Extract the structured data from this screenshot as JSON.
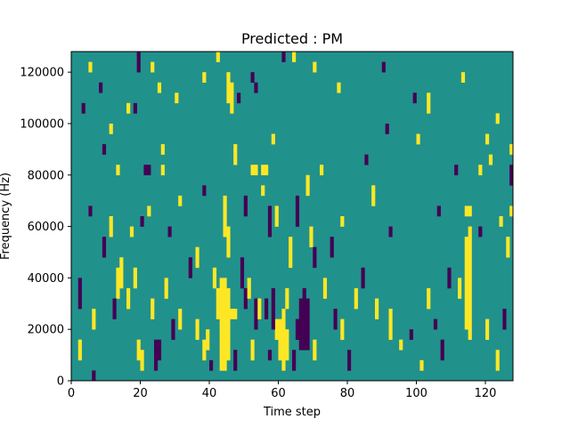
{
  "chart_data": {
    "type": "heatmap",
    "title": "Predicted : PM",
    "xlabel": "Time step",
    "ylabel": "Frequency (Hz)",
    "x_range": [
      0,
      128
    ],
    "y_range": [
      0,
      128000
    ],
    "x_ticks": [
      0,
      20,
      40,
      60,
      80,
      100,
      120
    ],
    "y_ticks": [
      0,
      20000,
      40000,
      60000,
      80000,
      100000,
      120000
    ],
    "x_tick_labels": [
      "0",
      "20",
      "40",
      "60",
      "80",
      "100",
      "120"
    ],
    "y_tick_labels": [
      "0",
      "20000",
      "40000",
      "60000",
      "80000",
      "100000",
      "120000"
    ],
    "levels": [
      -1,
      0,
      1
    ],
    "colormap": {
      "-1": "#440154",
      "0": "#21918c",
      "1": "#fde725"
    },
    "background_level": 0,
    "grid": false,
    "cell_size": {
      "time_steps": 1,
      "frequency_hz": 4000
    },
    "nonzero_cells": [
      {
        "t": 43,
        "f0": 4000,
        "f1": 40000,
        "v": 1
      },
      {
        "t": 44,
        "f0": 4000,
        "f1": 40000,
        "v": 1
      },
      {
        "t": 45,
        "f0": 8000,
        "f1": 36000,
        "v": 1
      },
      {
        "t": 42,
        "f0": 24000,
        "f1": 36000,
        "v": 1
      },
      {
        "t": 46,
        "f0": 24000,
        "f1": 28000,
        "v": 1
      },
      {
        "t": 47,
        "f0": 24000,
        "f1": 28000,
        "v": 1
      },
      {
        "t": 44,
        "f0": 56000,
        "f1": 72000,
        "v": 1
      },
      {
        "t": 45,
        "f0": 48000,
        "f1": 60000,
        "v": 1
      },
      {
        "t": 45,
        "f0": 108000,
        "f1": 120000,
        "v": 1
      },
      {
        "t": 46,
        "f0": 104000,
        "f1": 116000,
        "v": 1
      },
      {
        "t": 60,
        "f0": 8000,
        "f1": 24000,
        "v": 1
      },
      {
        "t": 61,
        "f0": 4000,
        "f1": 28000,
        "v": 1
      },
      {
        "t": 62,
        "f0": 8000,
        "f1": 20000,
        "v": 1
      },
      {
        "t": 59,
        "f0": 16000,
        "f1": 24000,
        "v": 1
      },
      {
        "t": 62,
        "f0": 28000,
        "f1": 36000,
        "v": 1
      },
      {
        "t": 66,
        "f0": 12000,
        "f1": 32000,
        "v": -1
      },
      {
        "t": 67,
        "f0": 12000,
        "f1": 36000,
        "v": -1
      },
      {
        "t": 68,
        "f0": 12000,
        "f1": 32000,
        "v": -1
      },
      {
        "t": 65,
        "f0": 16000,
        "f1": 24000,
        "v": -1
      },
      {
        "t": 58,
        "f0": 20000,
        "f1": 36000,
        "v": -1
      },
      {
        "t": 56,
        "f0": 24000,
        "f1": 32000,
        "v": -1
      },
      {
        "t": 114,
        "f0": 20000,
        "f1": 56000,
        "v": 1
      },
      {
        "t": 115,
        "f0": 16000,
        "f1": 60000,
        "v": 1
      },
      {
        "t": 115,
        "f0": 64000,
        "f1": 68000,
        "v": 1
      },
      {
        "t": 114,
        "f0": 64000,
        "f1": 68000,
        "v": 1
      },
      {
        "t": 19,
        "f0": 8000,
        "f1": 16000,
        "v": 1
      },
      {
        "t": 20,
        "f0": 4000,
        "f1": 12000,
        "v": 1
      },
      {
        "t": 24,
        "f0": 4000,
        "f1": 16000,
        "v": -1
      },
      {
        "t": 25,
        "f0": 8000,
        "f1": 16000,
        "v": -1
      },
      {
        "t": 52,
        "f0": 116000,
        "f1": 120000,
        "v": -1
      },
      {
        "t": 53,
        "f0": 112000,
        "f1": 116000,
        "v": -1
      },
      {
        "t": 21,
        "f0": 80000,
        "f1": 84000,
        "v": -1
      },
      {
        "t": 22,
        "f0": 80000,
        "f1": 84000,
        "v": -1
      },
      {
        "t": 26,
        "f0": 80000,
        "f1": 84000,
        "v": 1
      },
      {
        "t": 52,
        "f0": 80000,
        "f1": 84000,
        "v": 1
      },
      {
        "t": 53,
        "f0": 80000,
        "f1": 84000,
        "v": 1
      },
      {
        "t": 55,
        "f0": 80000,
        "f1": 84000,
        "v": 1
      },
      {
        "t": 56,
        "f0": 80000,
        "f1": 84000,
        "v": 1
      },
      {
        "t": 127,
        "f0": 76000,
        "f1": 84000,
        "v": -1
      },
      {
        "t": 2,
        "f0": 28000,
        "f1": 40000,
        "v": -1
      },
      {
        "t": 6,
        "f0": 0,
        "f1": 4000,
        "v": -1
      },
      {
        "t": 2,
        "f0": 8000,
        "f1": 16000,
        "v": 1
      },
      {
        "t": 13,
        "f0": 32000,
        "f1": 44000,
        "v": 1
      },
      {
        "t": 14,
        "f0": 36000,
        "f1": 48000,
        "v": 1
      },
      {
        "t": 16,
        "f0": 28000,
        "f1": 36000,
        "v": 1
      },
      {
        "t": 18,
        "f0": 36000,
        "f1": 44000,
        "v": 1
      },
      {
        "t": 27,
        "f0": 32000,
        "f1": 40000,
        "v": 1
      },
      {
        "t": 31,
        "f0": 20000,
        "f1": 28000,
        "v": 1
      },
      {
        "t": 36,
        "f0": 16000,
        "f1": 24000,
        "v": 1
      },
      {
        "t": 38,
        "f0": 8000,
        "f1": 16000,
        "v": 1
      },
      {
        "t": 39,
        "f0": 12000,
        "f1": 20000,
        "v": 1
      },
      {
        "t": 40,
        "f0": 4000,
        "f1": 8000,
        "v": -1
      },
      {
        "t": 34,
        "f0": 40000,
        "f1": 48000,
        "v": -1
      },
      {
        "t": 36,
        "f0": 44000,
        "f1": 52000,
        "v": 1
      },
      {
        "t": 41,
        "f0": 36000,
        "f1": 44000,
        "v": 1
      },
      {
        "t": 49,
        "f0": 36000,
        "f1": 48000,
        "v": -1
      },
      {
        "t": 50,
        "f0": 28000,
        "f1": 36000,
        "v": -1
      },
      {
        "t": 51,
        "f0": 32000,
        "f1": 40000,
        "v": 1
      },
      {
        "t": 53,
        "f0": 20000,
        "f1": 32000,
        "v": -1
      },
      {
        "t": 54,
        "f0": 24000,
        "f1": 32000,
        "v": 1
      },
      {
        "t": 57,
        "f0": 56000,
        "f1": 68000,
        "v": -1
      },
      {
        "t": 59,
        "f0": 60000,
        "f1": 68000,
        "v": 1
      },
      {
        "t": 63,
        "f0": 44000,
        "f1": 56000,
        "v": 1
      },
      {
        "t": 65,
        "f0": 60000,
        "f1": 72000,
        "v": -1
      },
      {
        "t": 69,
        "f0": 52000,
        "f1": 60000,
        "v": 1
      },
      {
        "t": 70,
        "f0": 44000,
        "f1": 52000,
        "v": -1
      },
      {
        "t": 73,
        "f0": 32000,
        "f1": 40000,
        "v": 1
      },
      {
        "t": 75,
        "f0": 48000,
        "f1": 56000,
        "v": -1
      },
      {
        "t": 78,
        "f0": 16000,
        "f1": 24000,
        "v": 1
      },
      {
        "t": 80,
        "f0": 4000,
        "f1": 12000,
        "v": -1
      },
      {
        "t": 82,
        "f0": 28000,
        "f1": 36000,
        "v": 1
      },
      {
        "t": 84,
        "f0": 36000,
        "f1": 44000,
        "v": -1
      },
      {
        "t": 87,
        "f0": 68000,
        "f1": 76000,
        "v": 1
      },
      {
        "t": 92,
        "f0": 16000,
        "f1": 28000,
        "v": 1
      },
      {
        "t": 95,
        "f0": 12000,
        "f1": 16000,
        "v": 1
      },
      {
        "t": 98,
        "f0": 16000,
        "f1": 20000,
        "v": -1
      },
      {
        "t": 103,
        "f0": 28000,
        "f1": 36000,
        "v": 1
      },
      {
        "t": 107,
        "f0": 8000,
        "f1": 16000,
        "v": -1
      },
      {
        "t": 109,
        "f0": 36000,
        "f1": 44000,
        "v": -1
      },
      {
        "t": 120,
        "f0": 16000,
        "f1": 24000,
        "v": 1
      },
      {
        "t": 123,
        "f0": 4000,
        "f1": 12000,
        "v": 1
      },
      {
        "t": 125,
        "f0": 20000,
        "f1": 28000,
        "v": -1
      },
      {
        "t": 126,
        "f0": 48000,
        "f1": 56000,
        "v": 1
      },
      {
        "t": 3,
        "f0": 104000,
        "f1": 108000,
        "v": -1
      },
      {
        "t": 5,
        "f0": 120000,
        "f1": 124000,
        "v": 1
      },
      {
        "t": 8,
        "f0": 112000,
        "f1": 116000,
        "v": -1
      },
      {
        "t": 11,
        "f0": 96000,
        "f1": 100000,
        "v": 1
      },
      {
        "t": 16,
        "f0": 104000,
        "f1": 108000,
        "v": 1
      },
      {
        "t": 18,
        "f0": 104000,
        "f1": 108000,
        "v": -1
      },
      {
        "t": 19,
        "f0": 120000,
        "f1": 128000,
        "v": -1
      },
      {
        "t": 23,
        "f0": 120000,
        "f1": 124000,
        "v": 1
      },
      {
        "t": 25,
        "f0": 112000,
        "f1": 116000,
        "v": 1
      },
      {
        "t": 30,
        "f0": 108000,
        "f1": 112000,
        "v": 1
      },
      {
        "t": 38,
        "f0": 116000,
        "f1": 120000,
        "v": 1
      },
      {
        "t": 42,
        "f0": 124000,
        "f1": 128000,
        "v": 1
      },
      {
        "t": 48,
        "f0": 108000,
        "f1": 112000,
        "v": -1
      },
      {
        "t": 61,
        "f0": 124000,
        "f1": 128000,
        "v": -1
      },
      {
        "t": 64,
        "f0": 124000,
        "f1": 128000,
        "v": 1
      },
      {
        "t": 70,
        "f0": 120000,
        "f1": 124000,
        "v": 1
      },
      {
        "t": 77,
        "f0": 112000,
        "f1": 116000,
        "v": 1
      },
      {
        "t": 90,
        "f0": 120000,
        "f1": 124000,
        "v": -1
      },
      {
        "t": 99,
        "f0": 108000,
        "f1": 112000,
        "v": -1
      },
      {
        "t": 103,
        "f0": 104000,
        "f1": 112000,
        "v": 1
      },
      {
        "t": 113,
        "f0": 116000,
        "f1": 120000,
        "v": 1
      },
      {
        "t": 120,
        "f0": 92000,
        "f1": 96000,
        "v": 1
      },
      {
        "t": 123,
        "f0": 100000,
        "f1": 104000,
        "v": 1
      },
      {
        "t": 127,
        "f0": 88000,
        "f1": 92000,
        "v": 1
      },
      {
        "t": 9,
        "f0": 88000,
        "f1": 92000,
        "v": -1
      },
      {
        "t": 13,
        "f0": 80000,
        "f1": 84000,
        "v": 1
      },
      {
        "t": 26,
        "f0": 88000,
        "f1": 92000,
        "v": 1
      },
      {
        "t": 47,
        "f0": 84000,
        "f1": 92000,
        "v": 1
      },
      {
        "t": 58,
        "f0": 92000,
        "f1": 96000,
        "v": 1
      },
      {
        "t": 72,
        "f0": 80000,
        "f1": 84000,
        "v": 1
      },
      {
        "t": 85,
        "f0": 84000,
        "f1": 88000,
        "v": -1
      },
      {
        "t": 91,
        "f0": 96000,
        "f1": 100000,
        "v": -1
      },
      {
        "t": 100,
        "f0": 92000,
        "f1": 96000,
        "v": 1
      },
      {
        "t": 111,
        "f0": 80000,
        "f1": 84000,
        "v": -1
      },
      {
        "t": 118,
        "f0": 80000,
        "f1": 84000,
        "v": 1
      },
      {
        "t": 121,
        "f0": 84000,
        "f1": 88000,
        "v": 1
      },
      {
        "t": 5,
        "f0": 64000,
        "f1": 68000,
        "v": -1
      },
      {
        "t": 9,
        "f0": 48000,
        "f1": 56000,
        "v": -1
      },
      {
        "t": 11,
        "f0": 56000,
        "f1": 64000,
        "v": 1
      },
      {
        "t": 17,
        "f0": 56000,
        "f1": 60000,
        "v": 1
      },
      {
        "t": 20,
        "f0": 60000,
        "f1": 64000,
        "v": -1
      },
      {
        "t": 22,
        "f0": 64000,
        "f1": 68000,
        "v": 1
      },
      {
        "t": 28,
        "f0": 56000,
        "f1": 60000,
        "v": -1
      },
      {
        "t": 31,
        "f0": 68000,
        "f1": 72000,
        "v": 1
      },
      {
        "t": 38,
        "f0": 72000,
        "f1": 76000,
        "v": -1
      },
      {
        "t": 50,
        "f0": 64000,
        "f1": 72000,
        "v": -1
      },
      {
        "t": 55,
        "f0": 72000,
        "f1": 76000,
        "v": 1
      },
      {
        "t": 68,
        "f0": 72000,
        "f1": 80000,
        "v": 1
      },
      {
        "t": 78,
        "f0": 60000,
        "f1": 64000,
        "v": 1
      },
      {
        "t": 92,
        "f0": 56000,
        "f1": 60000,
        "v": -1
      },
      {
        "t": 106,
        "f0": 64000,
        "f1": 68000,
        "v": -1
      },
      {
        "t": 118,
        "f0": 56000,
        "f1": 60000,
        "v": -1
      },
      {
        "t": 124,
        "f0": 60000,
        "f1": 64000,
        "v": 1
      },
      {
        "t": 127,
        "f0": 64000,
        "f1": 68000,
        "v": 1
      },
      {
        "t": 6,
        "f0": 20000,
        "f1": 28000,
        "v": 1
      },
      {
        "t": 12,
        "f0": 24000,
        "f1": 32000,
        "v": -1
      },
      {
        "t": 23,
        "f0": 24000,
        "f1": 32000,
        "v": 1
      },
      {
        "t": 29,
        "f0": 16000,
        "f1": 24000,
        "v": -1
      },
      {
        "t": 47,
        "f0": 4000,
        "f1": 12000,
        "v": -1
      },
      {
        "t": 52,
        "f0": 8000,
        "f1": 16000,
        "v": 1
      },
      {
        "t": 57,
        "f0": 8000,
        "f1": 12000,
        "v": -1
      },
      {
        "t": 64,
        "f0": 4000,
        "f1": 12000,
        "v": -1
      },
      {
        "t": 70,
        "f0": 8000,
        "f1": 16000,
        "v": 1
      },
      {
        "t": 76,
        "f0": 20000,
        "f1": 28000,
        "v": -1
      },
      {
        "t": 88,
        "f0": 24000,
        "f1": 32000,
        "v": 1
      },
      {
        "t": 101,
        "f0": 4000,
        "f1": 8000,
        "v": 1
      },
      {
        "t": 105,
        "f0": 20000,
        "f1": 24000,
        "v": -1
      },
      {
        "t": 112,
        "f0": 32000,
        "f1": 40000,
        "v": 1
      }
    ]
  }
}
